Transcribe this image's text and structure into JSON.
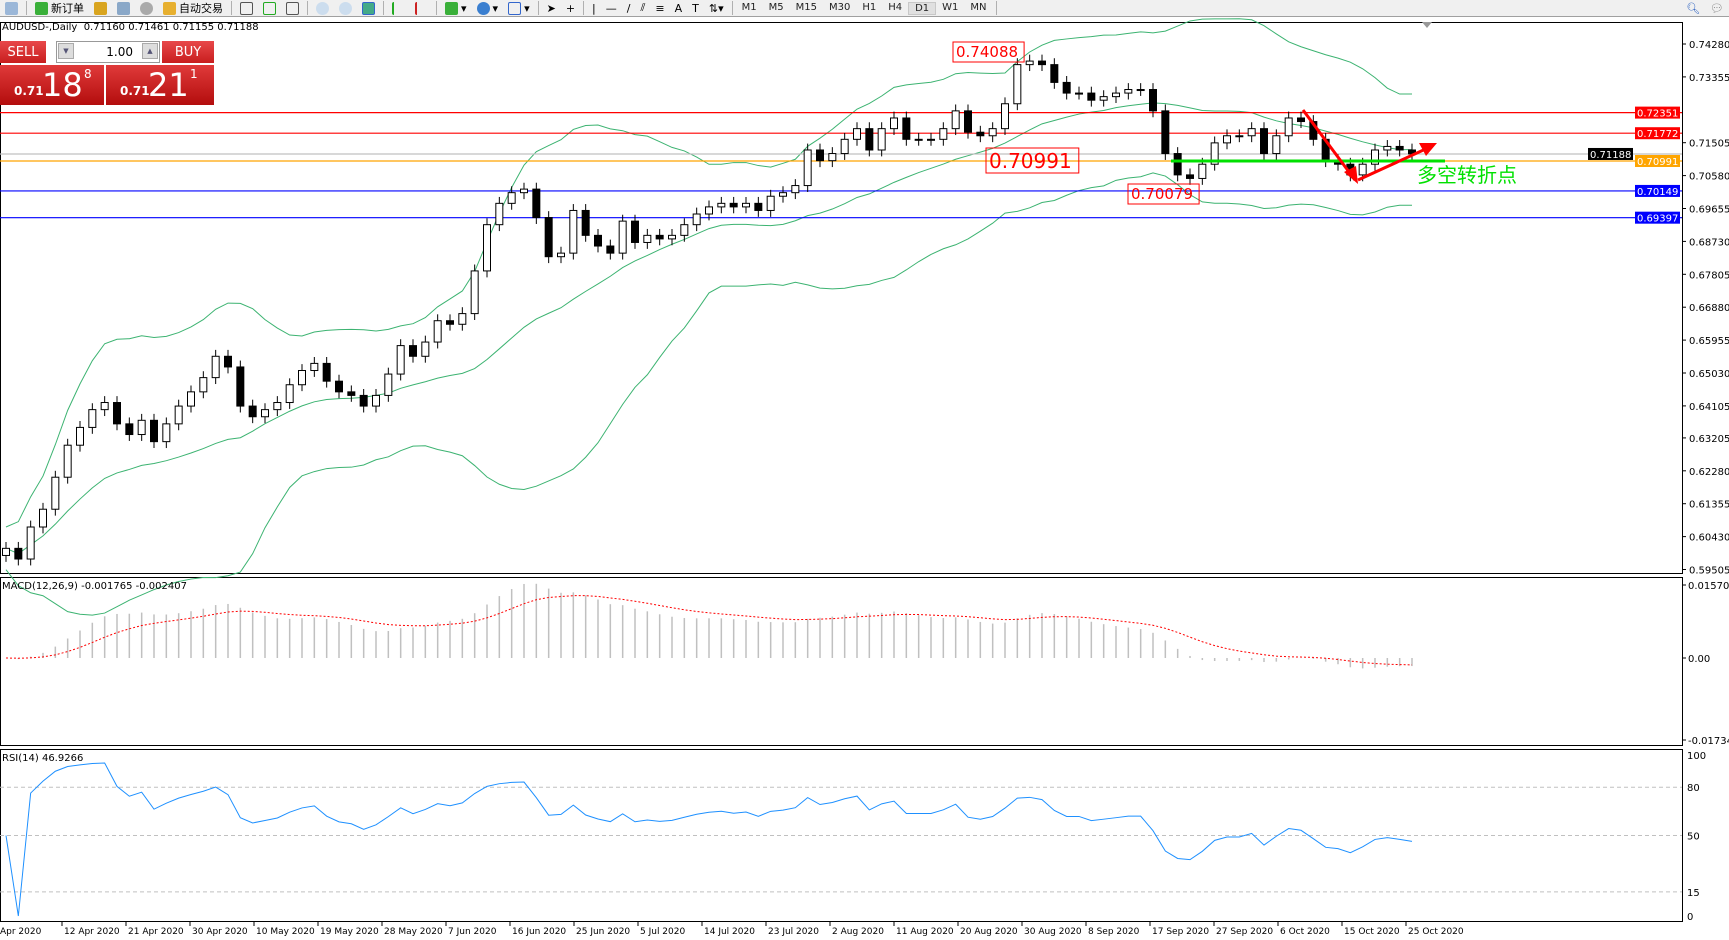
{
  "toolbar": {
    "new_order_label": "新订单",
    "auto_trading_label": "自动交易",
    "timeframes": [
      "M1",
      "M5",
      "M15",
      "M30",
      "H1",
      "H4",
      "D1",
      "W1",
      "MN"
    ],
    "active_timeframe": "D1"
  },
  "chart_header": {
    "title": "AUDUSD-,Daily",
    "ohlc": "0.71160 0.71461 0.71155 0.71188"
  },
  "one_click": {
    "sell_label": "SELL",
    "buy_label": "BUY",
    "lot": "1.00",
    "sell_prefix": "0.71",
    "sell_big": "18",
    "sell_sup": "8",
    "buy_prefix": "0.71",
    "buy_big": "21",
    "buy_sup": "1",
    "color": "#d32020"
  },
  "chart_data": [
    {
      "type": "candlestick",
      "symbol": "AUDUSD-",
      "timeframe": "Daily",
      "ylim": [
        0.5945,
        0.749
      ],
      "y_ticks": [
        "0.74280",
        "0.73355",
        "0.71505",
        "0.70580",
        "0.69655",
        "0.68730",
        "0.67805",
        "0.66880",
        "0.65955",
        "0.65030",
        "0.64105",
        "0.63205",
        "0.62280",
        "0.61355",
        "0.60430",
        "0.59505"
      ],
      "x_ticks": [
        "Apr 2020",
        "12 Apr 2020",
        "21 Apr 2020",
        "30 Apr 2020",
        "10 May 2020",
        "19 May 2020",
        "28 May 2020",
        "7 Jun 2020",
        "16 Jun 2020",
        "25 Jun 2020",
        "5 Jul 2020",
        "14 Jul 2020",
        "23 Jul 2020",
        "2 Aug 2020",
        "11 Aug 2020",
        "20 Aug 2020",
        "30 Aug 2020",
        "8 Sep 2020",
        "17 Sep 2020",
        "27 Sep 2020",
        "6 Oct 2020",
        "15 Oct 2020",
        "25 Oct 2020"
      ],
      "close": [
        0.601,
        0.598,
        0.607,
        0.612,
        0.621,
        0.63,
        0.635,
        0.64,
        0.642,
        0.636,
        0.633,
        0.637,
        0.631,
        0.636,
        0.641,
        0.645,
        0.649,
        0.655,
        0.652,
        0.641,
        0.638,
        0.64,
        0.642,
        0.647,
        0.651,
        0.653,
        0.648,
        0.645,
        0.644,
        0.641,
        0.644,
        0.65,
        0.658,
        0.655,
        0.659,
        0.665,
        0.664,
        0.667,
        0.679,
        0.692,
        0.698,
        0.701,
        0.702,
        0.694,
        0.683,
        0.684,
        0.696,
        0.689,
        0.686,
        0.684,
        0.693,
        0.687,
        0.689,
        0.688,
        0.689,
        0.692,
        0.695,
        0.697,
        0.698,
        0.697,
        0.698,
        0.696,
        0.7,
        0.701,
        0.703,
        0.713,
        0.71,
        0.712,
        0.716,
        0.719,
        0.713,
        0.719,
        0.722,
        0.716,
        0.716,
        0.716,
        0.719,
        0.724,
        0.718,
        0.717,
        0.719,
        0.726,
        0.737,
        0.738,
        0.737,
        0.732,
        0.729,
        0.729,
        0.727,
        0.728,
        0.729,
        0.73,
        0.73,
        0.724,
        0.712,
        0.706,
        0.705,
        0.709,
        0.715,
        0.717,
        0.717,
        0.719,
        0.712,
        0.717,
        0.722,
        0.721,
        0.716,
        0.71,
        0.709,
        0.706,
        0.709,
        0.713,
        0.714,
        0.713,
        0.7119
      ],
      "indicators": [
        "Bollinger Bands"
      ],
      "horizontal_lines": [
        {
          "price": "0.72351",
          "color": "#ff0000",
          "label_bg": "#ff0000"
        },
        {
          "price": "0.71772",
          "color": "#ff0000",
          "label_bg": "#ff0000"
        },
        {
          "price": "0.71188",
          "color": "#c0c0c0",
          "label_bg": "#000000"
        },
        {
          "price": "0.70991",
          "color": "#ffa500",
          "label_bg": "#ffa500"
        },
        {
          "price": "0.70149",
          "color": "#0000ff",
          "label_bg": "#0000ff"
        },
        {
          "price": "0.69397",
          "color": "#0000ff",
          "label_bg": "#0000ff"
        }
      ],
      "annotations": {
        "high_label": "0.74088",
        "mid_label": "0.70991",
        "low_label": "0.70079",
        "pivot_text": "多空转折点",
        "pivot_line_price": 0.7099,
        "pivot_color": "#00e000",
        "arrow_color": "#ff0000"
      }
    },
    {
      "type": "bar+line",
      "label": "MACD(12,26,9) -0.001765 -0.002407",
      "ylim": [
        -0.017346,
        0.015701
      ],
      "y_ticks": [
        "0.015701",
        "0.00",
        "-0.017346"
      ],
      "histogram_color": "#c0c0c0",
      "signal_color": "#ff0000"
    },
    {
      "type": "line",
      "label": "RSI(14) 46.9266",
      "ylim": [
        0,
        100
      ],
      "y_ticks": [
        "100",
        "80",
        "50",
        "15",
        "0"
      ],
      "levels": [
        80,
        50,
        15
      ],
      "color": "#1e90ff"
    }
  ]
}
